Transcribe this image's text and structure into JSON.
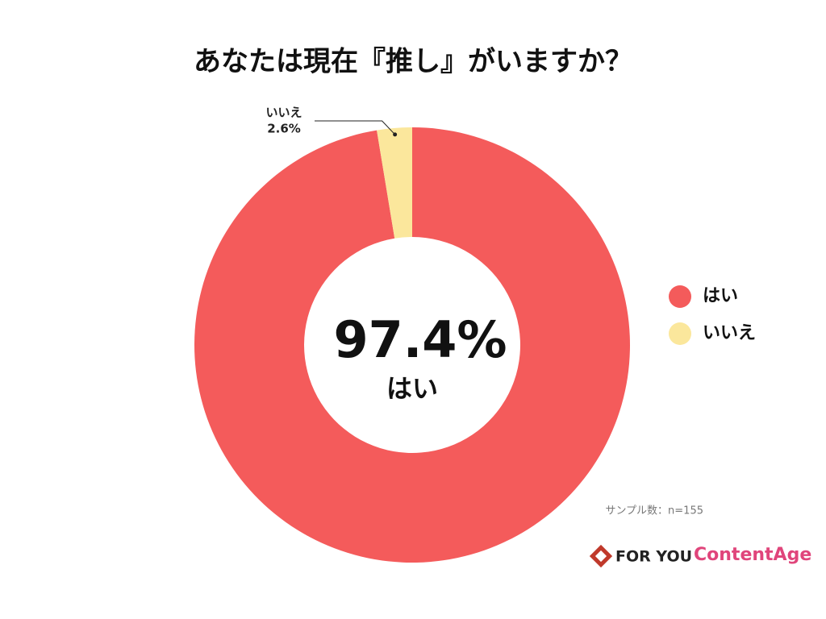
{
  "chart_data": {
    "type": "pie",
    "title": "あなたは現在『推し』がいますか？",
    "categories": [
      "はい",
      "いいえ"
    ],
    "values": [
      97.4,
      2.6
    ],
    "value_labels": [
      "97.4%",
      "2.6%"
    ],
    "colors": [
      "#f45b5b",
      "#fbe79c"
    ],
    "donut": true,
    "legend": "right",
    "note": "サンプル数：n=155"
  },
  "footer": {
    "brand": "FOR YOU",
    "partner": "ContentAge"
  }
}
